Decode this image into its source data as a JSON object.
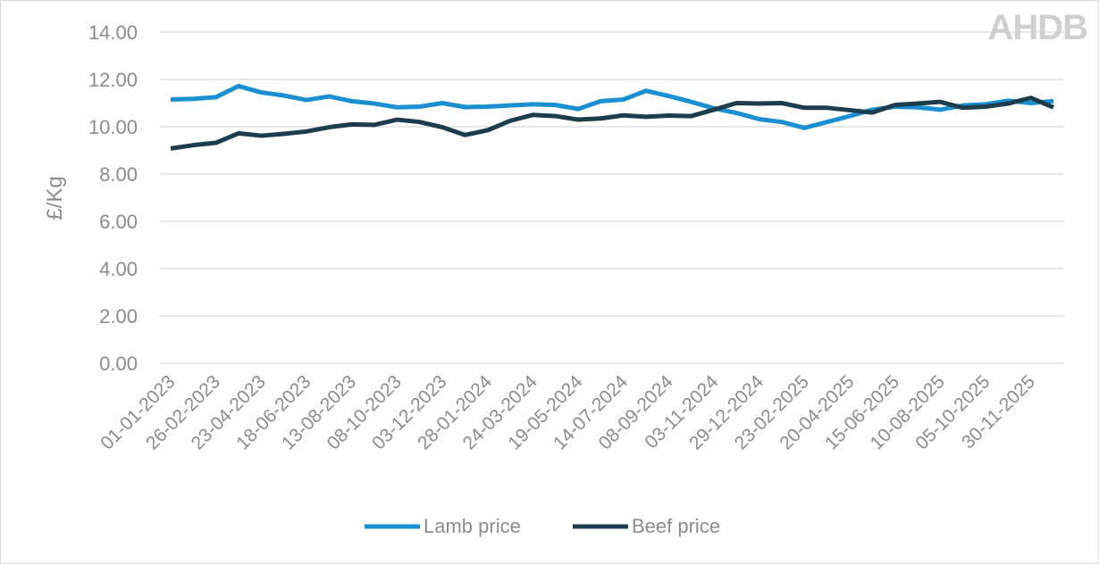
{
  "logo": "AHDB",
  "chart_data": {
    "type": "line",
    "title": "",
    "xlabel": "",
    "ylabel": "£/Kg",
    "ylim": [
      0,
      14
    ],
    "yticks": [
      "0.00",
      "2.00",
      "4.00",
      "6.00",
      "8.00",
      "10.00",
      "12.00",
      "14.00"
    ],
    "grid": true,
    "legend": "bottom",
    "x": [
      "01-01-2023",
      "29-01-2023",
      "26-02-2023",
      "26-03-2023",
      "23-04-2023",
      "21-05-2023",
      "18-06-2023",
      "16-07-2023",
      "13-08-2023",
      "10-09-2023",
      "08-10-2023",
      "05-11-2023",
      "03-12-2023",
      "31-12-2023",
      "28-01-2024",
      "25-02-2024",
      "24-03-2024",
      "21-04-2024",
      "19-05-2024",
      "16-06-2024",
      "14-07-2024",
      "11-08-2024",
      "08-09-2024",
      "06-10-2024",
      "03-11-2024",
      "01-12-2024",
      "29-12-2024",
      "26-01-2025",
      "23-02-2025",
      "23-03-2025",
      "20-04-2025",
      "18-05-2025",
      "15-06-2025",
      "13-07-2025",
      "10-08-2025",
      "07-09-2025",
      "05-10-2025",
      "02-11-2025",
      "30-11-2025",
      "28-12-2025"
    ],
    "xticks": [
      "01-01-2023",
      "26-02-2023",
      "23-04-2023",
      "18-06-2023",
      "13-08-2023",
      "08-10-2023",
      "03-12-2023",
      "28-01-2024",
      "24-03-2024",
      "19-05-2024",
      "14-07-2024",
      "08-09-2024",
      "03-11-2024",
      "29-12-2024",
      "23-02-2025",
      "20-04-2025",
      "15-06-2025",
      "10-08-2025",
      "05-10-2025",
      "30-11-2025"
    ],
    "series": [
      {
        "name": "Lamb price",
        "color": "#1b8fd2",
        "values": [
          11.15,
          11.18,
          11.25,
          11.72,
          11.45,
          11.32,
          11.13,
          11.28,
          11.08,
          10.98,
          10.82,
          10.85,
          11.0,
          10.83,
          10.85,
          10.9,
          10.95,
          10.92,
          10.75,
          11.08,
          11.15,
          11.52,
          11.3,
          11.05,
          10.78,
          10.58,
          10.32,
          10.2,
          9.95,
          10.2,
          10.45,
          10.72,
          10.85,
          10.82,
          10.72,
          10.9,
          10.95,
          11.1,
          11.0,
          11.08
        ]
      },
      {
        "name": "Beef price",
        "color": "#1d3d4d",
        "values": [
          9.08,
          9.22,
          9.32,
          9.72,
          9.62,
          9.7,
          9.8,
          9.98,
          10.1,
          10.08,
          10.3,
          10.2,
          9.98,
          9.65,
          9.85,
          10.25,
          10.5,
          10.45,
          10.3,
          10.35,
          10.48,
          10.42,
          10.47,
          10.45,
          10.72,
          11.0,
          10.98,
          11.0,
          10.8,
          10.8,
          10.7,
          10.6,
          10.92,
          10.98,
          11.05,
          10.8,
          10.85,
          10.98,
          11.22,
          10.82
        ]
      }
    ]
  }
}
